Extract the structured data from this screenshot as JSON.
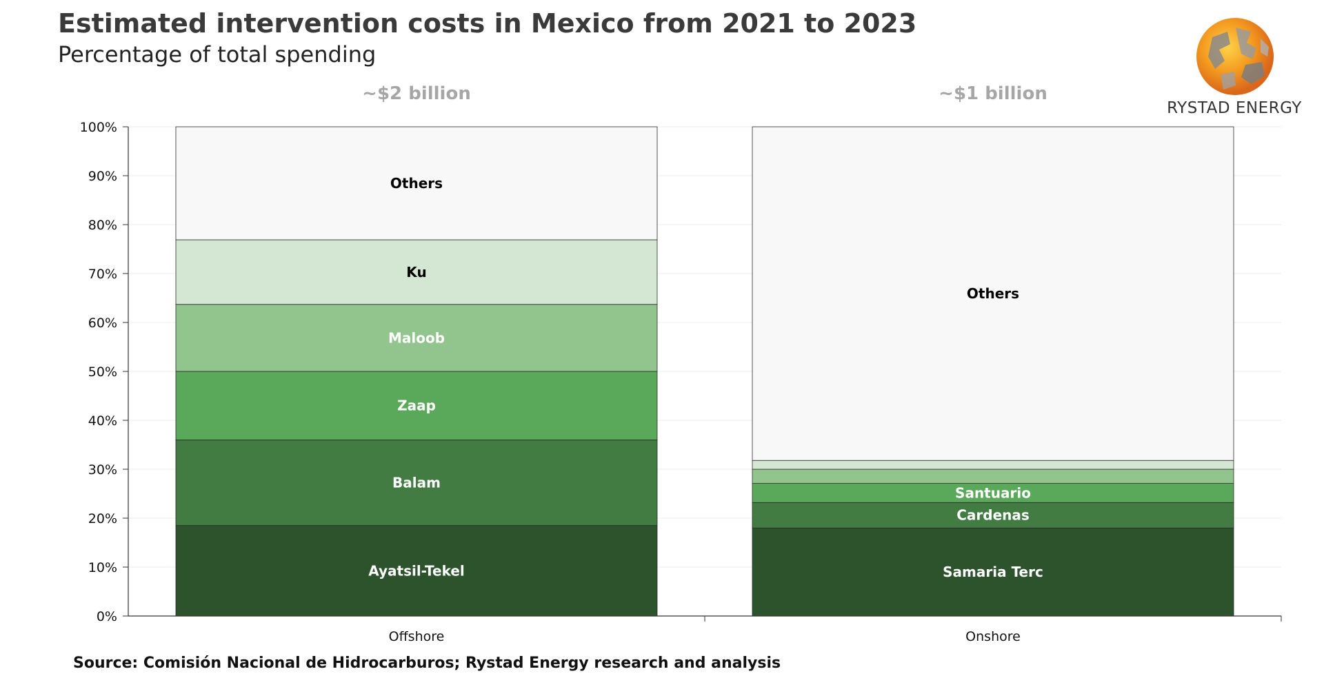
{
  "header": {
    "title": "Estimated intervention costs in Mexico from 2021 to 2023",
    "subtitle": "Percentage of total spending"
  },
  "footer": {
    "source": "Source: Comisión Nacional de Hidrocarburos; Rystad Energy research and analysis"
  },
  "logo": {
    "text": "RYSTAD ENERGY",
    "icon": "globe-logo-icon"
  },
  "chart_data": {
    "type": "bar",
    "stacked": true,
    "categories": [
      "Offshore",
      "Onshore"
    ],
    "ylim": [
      0,
      100
    ],
    "yticks": [
      "0%",
      "10%",
      "20%",
      "30%",
      "40%",
      "50%",
      "60%",
      "70%",
      "80%",
      "90%",
      "100%"
    ],
    "grid": true,
    "annotations": [
      "~$2 billion",
      "~$1 billion"
    ],
    "series": [
      {
        "category": "Offshore",
        "segments": [
          {
            "label": "Ayatsil-Tekel",
            "value": 18.5,
            "color": "#2c532c",
            "text_color": "#ffffff"
          },
          {
            "label": "Balam",
            "value": 17.5,
            "color": "#427c42",
            "text_color": "#ffffff"
          },
          {
            "label": "Zaap",
            "value": 14.0,
            "color": "#5aa85a",
            "text_color": "#ffffff"
          },
          {
            "label": "Maloob",
            "value": 13.7,
            "color": "#91c58d",
            "text_color": "#ffffff"
          },
          {
            "label": "Ku",
            "value": 13.2,
            "color": "#d3e7d3",
            "text_color": "#000000"
          },
          {
            "label": "Others",
            "value": 23.1,
            "color": "#f8f8f8",
            "text_color": "#000000"
          }
        ]
      },
      {
        "category": "Onshore",
        "segments": [
          {
            "label": "Samaria Terc",
            "value": 18.0,
            "color": "#2c532c",
            "text_color": "#ffffff"
          },
          {
            "label": "Cardenas",
            "value": 5.2,
            "color": "#427c42",
            "text_color": "#ffffff"
          },
          {
            "label": "Santuario",
            "value": 3.9,
            "color": "#5aa85a",
            "text_color": "#ffffff"
          },
          {
            "label": "",
            "value": 2.9,
            "color": "#91c58d",
            "text_color": "#ffffff"
          },
          {
            "label": "",
            "value": 1.8,
            "color": "#d3e7d3",
            "text_color": "#000000"
          },
          {
            "label": "Others",
            "value": 68.2,
            "color": "#f8f8f8",
            "text_color": "#000000"
          }
        ]
      }
    ]
  }
}
